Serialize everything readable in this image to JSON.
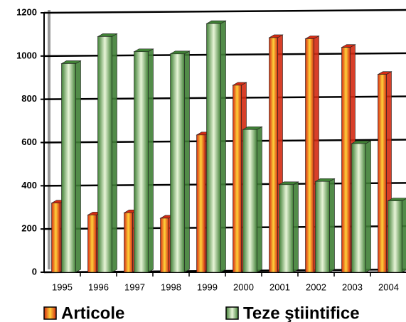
{
  "chart_data": {
    "type": "bar",
    "categories": [
      "1995",
      "1996",
      "1997",
      "1998",
      "1999",
      "2000",
      "2001",
      "2002",
      "2003",
      "2004"
    ],
    "series": [
      {
        "name": "Articole",
        "color": "#d42a12",
        "values": [
          320,
          265,
          275,
          250,
          635,
          865,
          1085,
          1080,
          1040,
          915
        ]
      },
      {
        "name": "Teze ştiintifice",
        "color": "#3f7f35",
        "values": [
          965,
          1090,
          1020,
          1010,
          1150,
          660,
          405,
          420,
          595,
          330
        ]
      }
    ],
    "ylim": [
      0,
      1200
    ],
    "yticks": [
      0,
      200,
      400,
      600,
      800,
      1000,
      1200
    ],
    "grid": true,
    "legend": "bottom"
  }
}
